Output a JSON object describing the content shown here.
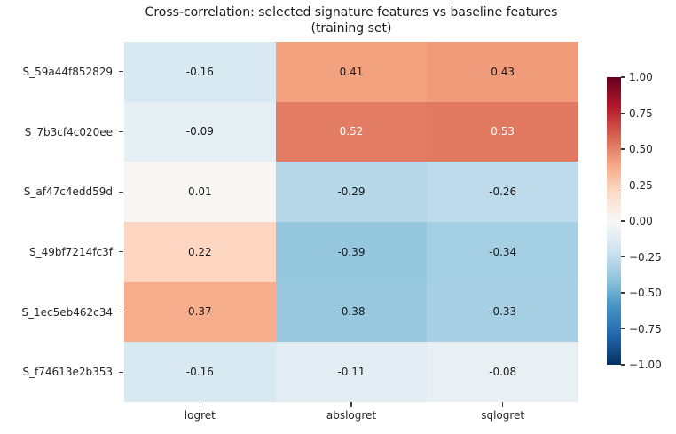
{
  "figure": {
    "title_line1": "Cross-correlation: selected signature features vs baseline features",
    "title_line2": "(training set)"
  },
  "chart_data": {
    "type": "heatmap",
    "title": "Cross-correlation: selected signature features vs baseline features (training set)",
    "rows": [
      "S_59a44f852829",
      "S_7b3cf4c020ee",
      "S_af47c4edd59d",
      "S_49bf7214fc3f",
      "S_1ec5eb462c34",
      "S_f74613e2b353"
    ],
    "columns": [
      "logret",
      "abslogret",
      "sqlogret"
    ],
    "values": [
      [
        -0.16,
        0.41,
        0.43
      ],
      [
        -0.09,
        0.52,
        0.53
      ],
      [
        0.01,
        -0.29,
        -0.26
      ],
      [
        0.22,
        -0.39,
        -0.34
      ],
      [
        0.37,
        -0.38,
        -0.33
      ],
      [
        -0.16,
        -0.11,
        -0.08
      ]
    ],
    "vmin": -1,
    "vmax": 1,
    "value_format_decimals": 2,
    "colormap": "RdBu_r",
    "colormap_stops": [
      "#053061",
      "#2166ac",
      "#4393c3",
      "#92c5de",
      "#d1e5f0",
      "#f7f7f7",
      "#fddbc7",
      "#f4a582",
      "#d6604d",
      "#b2182b",
      "#67001f"
    ],
    "colorbar_ticks": [
      "1.00",
      "0.75",
      "0.50",
      "0.25",
      "0.00",
      "−0.25",
      "−0.50",
      "−0.75",
      "−1.00"
    ],
    "annotation_dark_color": "#1a1a1a",
    "annotation_light_color": "#ffffff",
    "legend_position": "right",
    "grid": false
  }
}
